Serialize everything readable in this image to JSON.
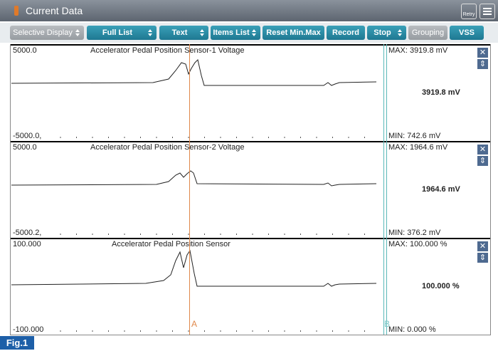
{
  "window": {
    "title": "Current Data",
    "retry": "Retry"
  },
  "toolbar": [
    "Selective Display",
    "Full List",
    "Text",
    "Items List",
    "Reset Min.Max",
    "Record",
    "Stop",
    "Grouping",
    "VSS"
  ],
  "panels": [
    {
      "ymax": "5000.0",
      "label": "Accelerator Pedal Position Sensor-1 Voltage",
      "ymin": "-5000.0,",
      "max": "MAX: 3919.8 mV",
      "current": "3919.8 mV",
      "min": "MIN: 742.6 mV"
    },
    {
      "ymax": "5000.0",
      "label": "Accelerator Pedal Position Sensor-2 Voltage",
      "ymin": "-5000.2,",
      "max": "MAX: 1964.6 mV",
      "current": "1964.6 mV",
      "min": "MIN: 376.2 mV"
    },
    {
      "ymax": "100.000",
      "label": "Accelerator Pedal Position Sensor",
      "ymin": "-100.000",
      "max": "MAX: 100.000 %",
      "current": "100.000 %",
      "min": "MIN: 0.000 %"
    }
  ],
  "cursors": [
    "A",
    "B"
  ],
  "figure": "Fig.1"
}
